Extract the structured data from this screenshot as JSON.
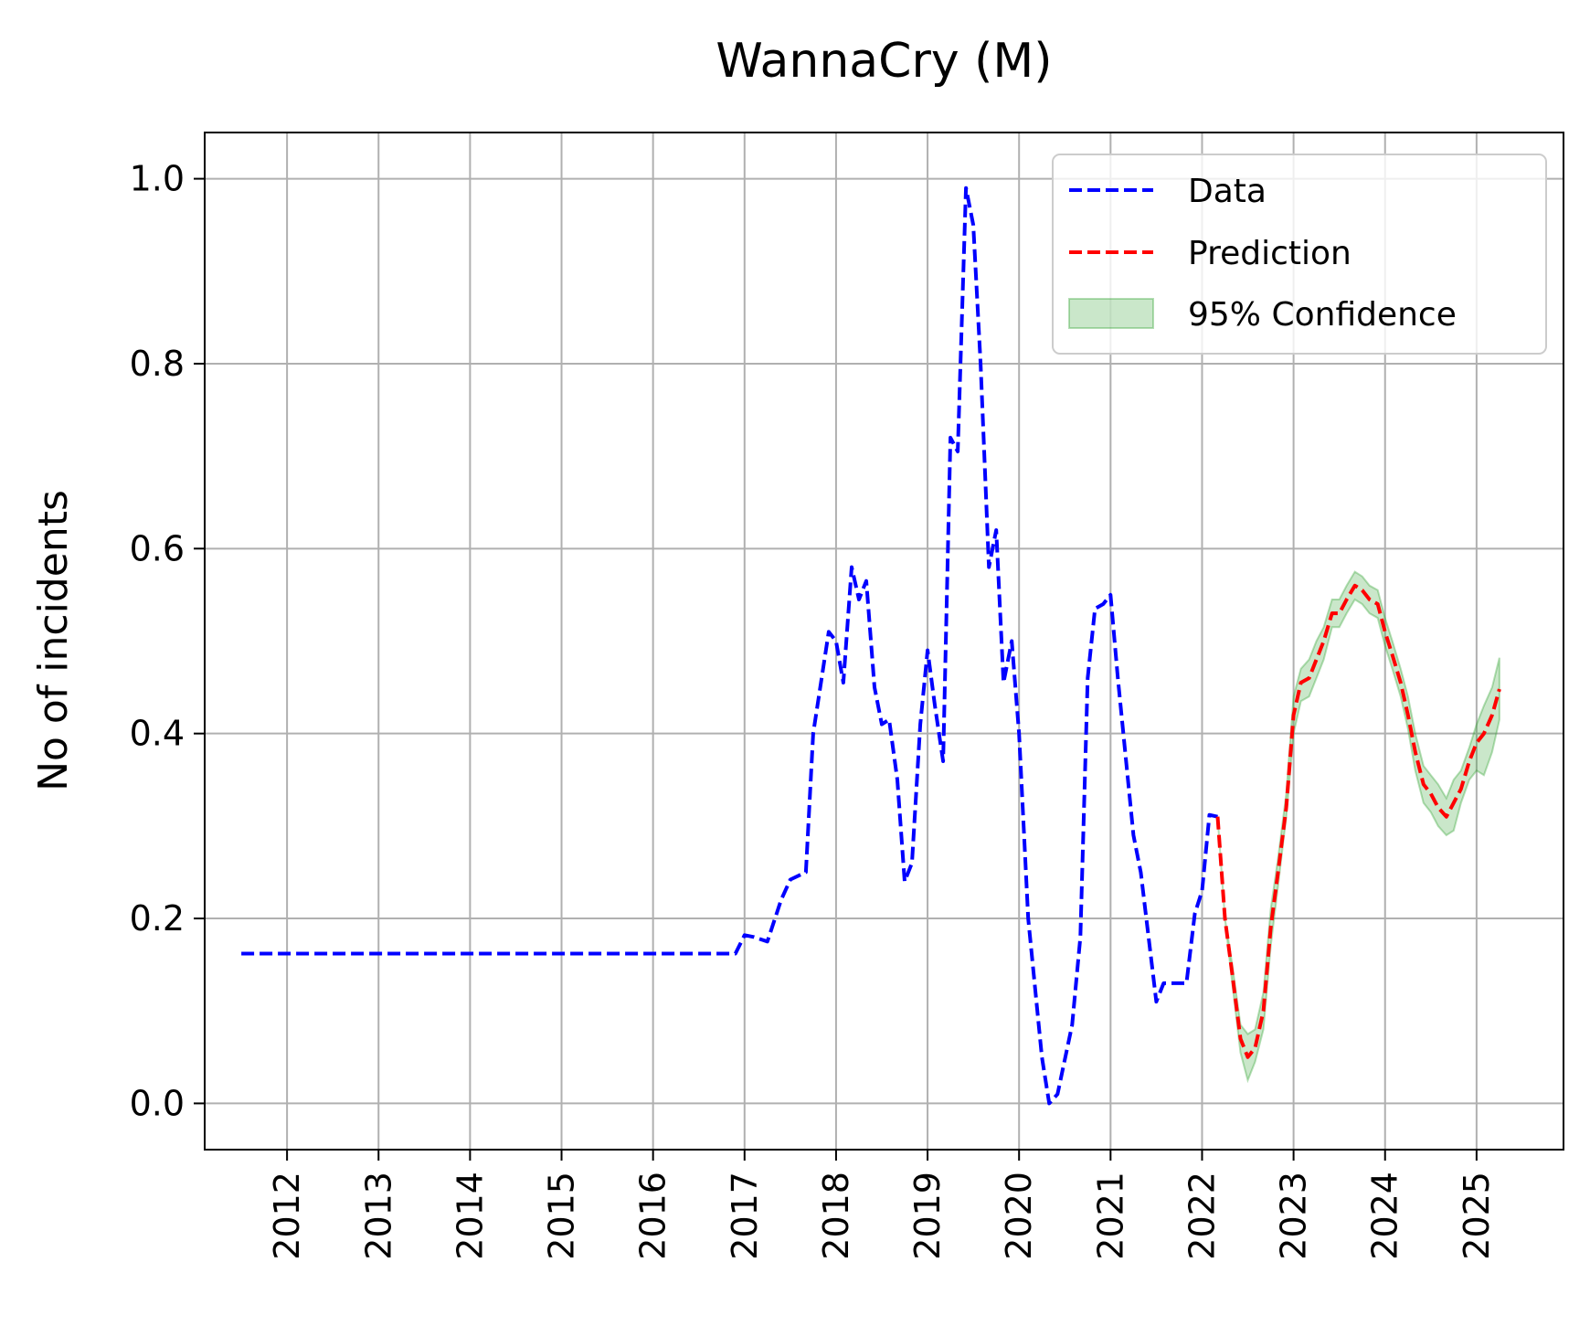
{
  "chart_data": {
    "type": "line",
    "title": "WannaCry (M)",
    "xlabel": "",
    "ylabel": "No of incidents",
    "xlim": [
      2011.1,
      2025.95
    ],
    "ylim": [
      -0.05,
      1.05
    ],
    "x_ticks": [
      2012,
      2013,
      2014,
      2015,
      2016,
      2017,
      2018,
      2019,
      2020,
      2021,
      2022,
      2023,
      2024,
      2025
    ],
    "x_tick_labels": [
      "2012",
      "2013",
      "2014",
      "2015",
      "2016",
      "2017",
      "2018",
      "2019",
      "2020",
      "2021",
      "2022",
      "2023",
      "2024",
      "2025"
    ],
    "y_ticks": [
      0.0,
      0.2,
      0.4,
      0.6,
      0.8,
      1.0
    ],
    "y_tick_labels": [
      "0.0",
      "0.2",
      "0.4",
      "0.6",
      "0.8",
      "1.0"
    ],
    "grid": true,
    "legend_position": "top-right",
    "legend": [
      "Data",
      "Prediction",
      "95% Confidence"
    ],
    "colors": {
      "data": "#0000ff",
      "prediction": "#ff0000",
      "confidence_fill": "#2ca02c"
    },
    "series": [
      {
        "name": "Data",
        "style": "dashed",
        "x": [
          2011.5,
          2016.9,
          2017.0,
          2017.1,
          2017.25,
          2017.4,
          2017.5,
          2017.67,
          2017.75,
          2017.92,
          2018.0,
          2018.08,
          2018.17,
          2018.25,
          2018.33,
          2018.42,
          2018.5,
          2018.58,
          2018.67,
          2018.75,
          2018.83,
          2018.92,
          2019.0,
          2019.08,
          2019.17,
          2019.25,
          2019.33,
          2019.42,
          2019.5,
          2019.58,
          2019.67,
          2019.75,
          2019.83,
          2019.92,
          2020.0,
          2020.1,
          2020.25,
          2020.33,
          2020.42,
          2020.58,
          2020.67,
          2020.75,
          2020.83,
          2020.92,
          2021.0,
          2021.08,
          2021.25,
          2021.33,
          2021.5,
          2021.58,
          2021.67,
          2021.83,
          2021.92,
          2022.0,
          2022.08,
          2022.17
        ],
        "y": [
          0.162,
          0.162,
          0.182,
          0.18,
          0.175,
          0.22,
          0.242,
          0.25,
          0.4,
          0.51,
          0.5,
          0.455,
          0.58,
          0.545,
          0.565,
          0.45,
          0.41,
          0.415,
          0.35,
          0.24,
          0.26,
          0.41,
          0.49,
          0.43,
          0.37,
          0.72,
          0.705,
          0.99,
          0.95,
          0.8,
          0.58,
          0.62,
          0.455,
          0.5,
          0.4,
          0.2,
          0.05,
          0.0,
          0.01,
          0.085,
          0.18,
          0.46,
          0.535,
          0.54,
          0.55,
          0.46,
          0.29,
          0.25,
          0.11,
          0.13,
          0.13,
          0.13,
          0.205,
          0.23,
          0.312,
          0.31
        ]
      },
      {
        "name": "Prediction",
        "style": "dashed",
        "x": [
          2022.17,
          2022.25,
          2022.33,
          2022.42,
          2022.5,
          2022.58,
          2022.67,
          2022.75,
          2022.83,
          2022.92,
          2023.0,
          2023.08,
          2023.17,
          2023.25,
          2023.33,
          2023.42,
          2023.5,
          2023.58,
          2023.67,
          2023.75,
          2023.83,
          2023.92,
          2024.0,
          2024.08,
          2024.17,
          2024.25,
          2024.33,
          2024.42,
          2024.5,
          2024.58,
          2024.67,
          2024.75,
          2024.83,
          2024.92,
          2025.0,
          2025.08,
          2025.17,
          2025.25
        ],
        "y": [
          0.31,
          0.2,
          0.14,
          0.07,
          0.05,
          0.06,
          0.1,
          0.19,
          0.25,
          0.32,
          0.42,
          0.455,
          0.46,
          0.48,
          0.5,
          0.53,
          0.53,
          0.545,
          0.56,
          0.555,
          0.545,
          0.54,
          0.51,
          0.485,
          0.455,
          0.42,
          0.38,
          0.345,
          0.335,
          0.32,
          0.31,
          0.325,
          0.34,
          0.37,
          0.39,
          0.4,
          0.42,
          0.448
        ]
      },
      {
        "name": "95% Confidence",
        "style": "band",
        "x": [
          2022.17,
          2022.25,
          2022.33,
          2022.42,
          2022.5,
          2022.58,
          2022.67,
          2022.75,
          2022.83,
          2022.92,
          2023.0,
          2023.08,
          2023.17,
          2023.25,
          2023.33,
          2023.42,
          2023.5,
          2023.58,
          2023.67,
          2023.75,
          2023.83,
          2023.92,
          2024.0,
          2024.08,
          2024.17,
          2024.25,
          2024.33,
          2024.42,
          2024.5,
          2024.58,
          2024.67,
          2024.75,
          2024.83,
          2024.92,
          2025.0,
          2025.08,
          2025.17,
          2025.25
        ],
        "lower": [
          0.31,
          0.2,
          0.13,
          0.055,
          0.025,
          0.045,
          0.08,
          0.17,
          0.235,
          0.31,
          0.4,
          0.435,
          0.44,
          0.46,
          0.48,
          0.515,
          0.515,
          0.53,
          0.545,
          0.54,
          0.53,
          0.525,
          0.495,
          0.47,
          0.44,
          0.405,
          0.36,
          0.325,
          0.315,
          0.3,
          0.29,
          0.295,
          0.325,
          0.35,
          0.36,
          0.355,
          0.38,
          0.415
        ],
        "upper": [
          0.31,
          0.2,
          0.15,
          0.085,
          0.075,
          0.08,
          0.12,
          0.21,
          0.265,
          0.335,
          0.44,
          0.47,
          0.48,
          0.5,
          0.515,
          0.545,
          0.545,
          0.56,
          0.575,
          0.57,
          0.56,
          0.555,
          0.525,
          0.5,
          0.47,
          0.44,
          0.4,
          0.365,
          0.355,
          0.345,
          0.33,
          0.35,
          0.36,
          0.385,
          0.41,
          0.43,
          0.45,
          0.482
        ]
      }
    ]
  }
}
